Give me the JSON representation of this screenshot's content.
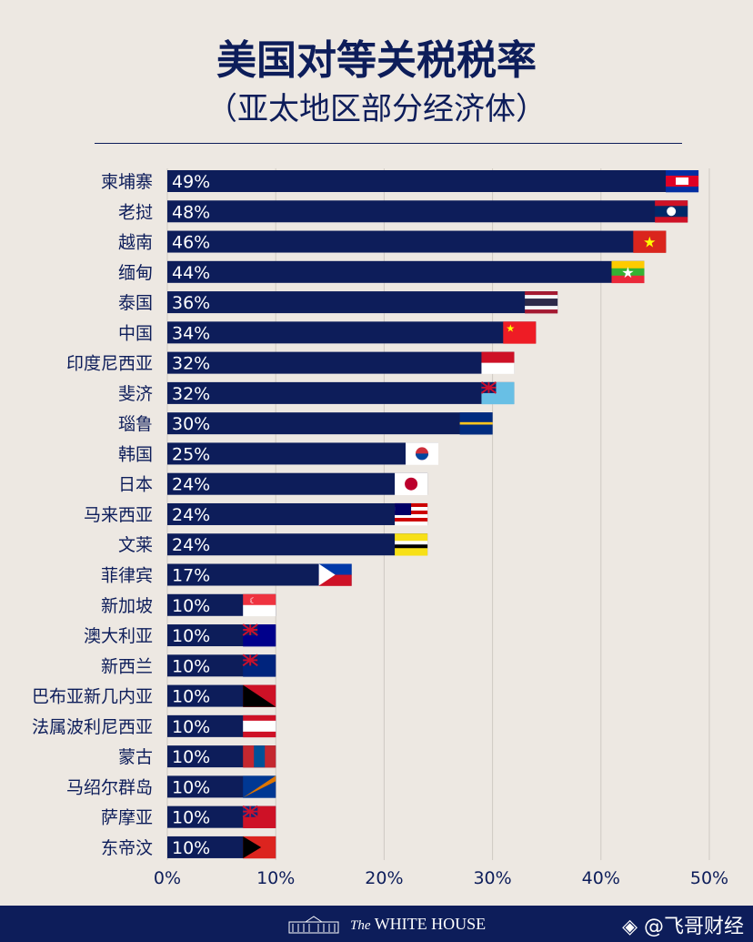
{
  "header": {
    "title": "美国对等关税税率",
    "subtitle": "（亚太地区部分经济体）"
  },
  "colors": {
    "bar": "#0d1d5a",
    "background": "#ede8e2",
    "grid": "#cfcac4"
  },
  "chart_data": {
    "type": "bar",
    "orientation": "horizontal",
    "categories": [
      "柬埔寨",
      "老挝",
      "越南",
      "缅甸",
      "泰国",
      "中国",
      "印度尼西亚",
      "斐济",
      "瑙鲁",
      "韩国",
      "日本",
      "马来西亚",
      "文莱",
      "菲律宾",
      "新加坡",
      "澳大利亚",
      "新西兰",
      "巴布亚新几内亚",
      "法属波利尼西亚",
      "蒙古",
      "马绍尔群岛",
      "萨摩亚",
      "东帝汶"
    ],
    "values": [
      49,
      48,
      46,
      44,
      36,
      34,
      32,
      32,
      30,
      25,
      24,
      24,
      24,
      17,
      10,
      10,
      10,
      10,
      10,
      10,
      10,
      10,
      10
    ],
    "data_labels": [
      "49%",
      "48%",
      "46%",
      "44%",
      "36%",
      "34%",
      "32%",
      "32%",
      "30%",
      "25%",
      "24%",
      "24%",
      "24%",
      "17%",
      "10%",
      "10%",
      "10%",
      "10%",
      "10%",
      "10%",
      "10%",
      "10%",
      "10%"
    ],
    "flags": [
      "cambodia-flag",
      "laos-flag",
      "vietnam-flag",
      "myanmar-flag",
      "thailand-flag",
      "china-flag",
      "indonesia-flag",
      "fiji-flag",
      "nauru-flag",
      "korea-flag",
      "japan-flag",
      "malaysia-flag",
      "brunei-flag",
      "philippines-flag",
      "singapore-flag",
      "australia-flag",
      "new-zealand-flag",
      "png-flag",
      "french-polynesia-flag",
      "mongolia-flag",
      "marshall-islands-flag",
      "samoa-flag",
      "timor-leste-flag"
    ],
    "xlim": [
      0,
      50
    ],
    "xticks": [
      "0%",
      "10%",
      "20%",
      "30%",
      "40%",
      "50%"
    ],
    "grid": true
  },
  "footer": {
    "brand_prefix": "The",
    "brand": "WHITE HOUSE",
    "watermark": "@飞哥财经"
  }
}
